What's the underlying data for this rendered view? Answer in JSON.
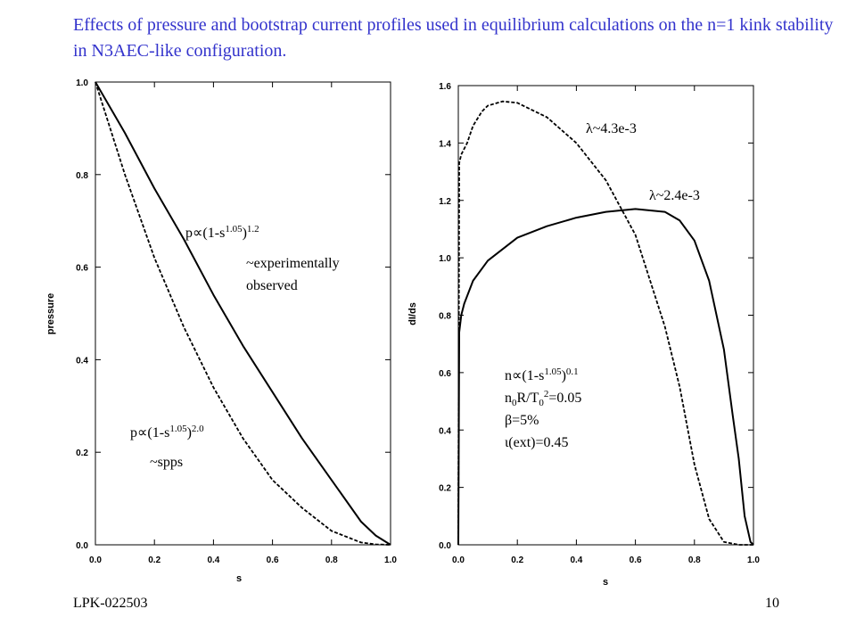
{
  "title": "Effects of pressure and bootstrap current profiles used in equilibrium calculations on the n=1 kink stability in N3AEC-like configuration.",
  "footer": {
    "left": "LPK-022503",
    "right": "10"
  },
  "chart_data": [
    {
      "type": "line",
      "xlabel": "s",
      "ylabel": "pressure",
      "xlim": [
        0,
        1
      ],
      "ylim": [
        0,
        1
      ],
      "xticks": [
        "0.0",
        "0.2",
        "0.4",
        "0.6",
        "0.8",
        "1.0"
      ],
      "yticks": [
        "0.0",
        "0.2",
        "0.4",
        "0.6",
        "0.8",
        "1.0"
      ],
      "series": [
        {
          "style": "solid",
          "x": [
            0,
            0.1,
            0.2,
            0.3,
            0.4,
            0.5,
            0.6,
            0.7,
            0.8,
            0.9,
            0.95,
            1.0
          ],
          "y": [
            1.0,
            0.89,
            0.77,
            0.66,
            0.54,
            0.43,
            0.33,
            0.23,
            0.14,
            0.05,
            0.02,
            0.0
          ]
        },
        {
          "style": "dashed",
          "x": [
            0,
            0.1,
            0.2,
            0.3,
            0.4,
            0.5,
            0.6,
            0.7,
            0.8,
            0.9,
            0.95,
            1.0
          ],
          "y": [
            1.0,
            0.8,
            0.62,
            0.47,
            0.34,
            0.23,
            0.14,
            0.08,
            0.03,
            0.005,
            0.001,
            0.0
          ]
        }
      ],
      "annotations": {
        "curve1": {
          "pre": "p∝(1-s",
          "sup1": "1.05",
          "mid": ")",
          "sup2": "1.2"
        },
        "note1_line1": "~experimentally",
        "note1_line2": "observed",
        "curve2": {
          "pre": "p∝(1-s",
          "sup1": "1.05",
          "mid": ")",
          "sup2": "2.0"
        },
        "note2": "~spps"
      }
    },
    {
      "type": "line",
      "xlabel": "s",
      "ylabel": "dI/ds",
      "xlim": [
        0,
        1
      ],
      "ylim": [
        0,
        1.6
      ],
      "xticks": [
        "0.0",
        "0.2",
        "0.4",
        "0.6",
        "0.8",
        "1.0"
      ],
      "yticks": [
        "0.0",
        "0.2",
        "0.4",
        "0.6",
        "0.8",
        "1.0",
        "1.2",
        "1.4",
        "1.6"
      ],
      "series": [
        {
          "style": "solid",
          "x": [
            0,
            0.003,
            0.01,
            0.02,
            0.05,
            0.1,
            0.2,
            0.3,
            0.4,
            0.5,
            0.6,
            0.7,
            0.75,
            0.8,
            0.85,
            0.9,
            0.93,
            0.95,
            0.97,
            0.99,
            1.0
          ],
          "y": [
            0,
            0.74,
            0.8,
            0.84,
            0.92,
            0.99,
            1.07,
            1.11,
            1.14,
            1.16,
            1.17,
            1.16,
            1.13,
            1.06,
            0.92,
            0.68,
            0.45,
            0.3,
            0.1,
            0.01,
            0.0
          ]
        },
        {
          "style": "dashed",
          "x": [
            0,
            0.003,
            0.01,
            0.03,
            0.05,
            0.08,
            0.1,
            0.15,
            0.2,
            0.3,
            0.4,
            0.5,
            0.6,
            0.7,
            0.75,
            0.8,
            0.85,
            0.9,
            0.95,
            1.0
          ],
          "y": [
            0,
            1.33,
            1.36,
            1.4,
            1.46,
            1.51,
            1.53,
            1.545,
            1.54,
            1.49,
            1.4,
            1.27,
            1.08,
            0.76,
            0.55,
            0.28,
            0.09,
            0.01,
            0.0,
            0.0
          ]
        }
      ],
      "annotations": {
        "lambda1": "λ~4.3e-3",
        "lambda2": "λ~2.4e-3",
        "param1": {
          "pre": "n∝(1-s",
          "sup1": "1.05",
          "mid": ")",
          "sup2": "0.1"
        },
        "param2": {
          "pre": "n",
          "sub1": "0",
          "mid1": "R/T",
          "sub2": "0",
          "sup2": "2",
          "post": "=0.05"
        },
        "param3": "β=5%",
        "param4": "ι(ext)=0.45"
      }
    }
  ]
}
